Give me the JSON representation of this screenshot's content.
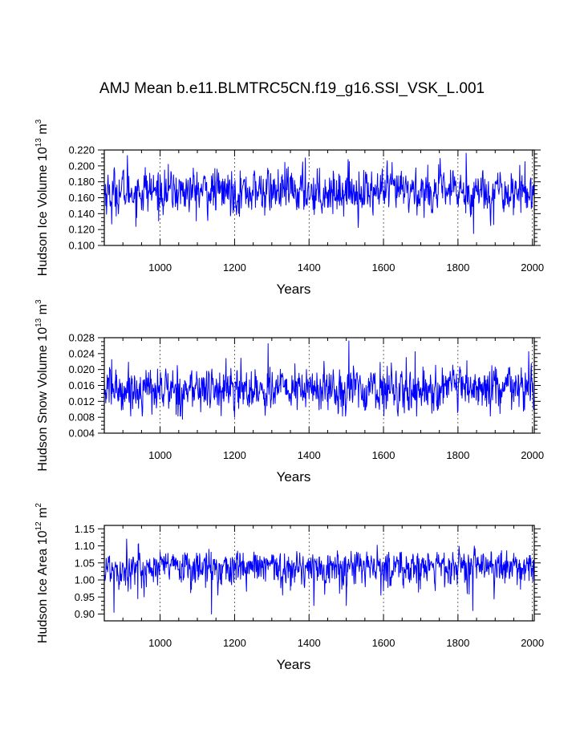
{
  "title": "AMJ Mean b.e11.BLMTRC5CN.f19_g16.SSI_VSK_L.001",
  "chart_data": [
    {
      "type": "line",
      "xlabel": "Years",
      "ylabel": "Hudson Ice Volume 10^13 m^3",
      "ylabel_parts": {
        "main": "Hudson Ice Volume 10",
        "exp": "13",
        "unit": " m",
        "unit_exp": "3"
      },
      "xlim": [
        850,
        2005
      ],
      "ylim": [
        0.1,
        0.22
      ],
      "xticks": [
        1000,
        1200,
        1400,
        1600,
        1800,
        2000
      ],
      "xtick_labels": [
        "1000",
        "1200",
        "1400",
        "1600",
        "1800",
        "2000"
      ],
      "yticks": [
        0.1,
        0.12,
        0.14,
        0.16,
        0.18,
        0.2,
        0.22
      ],
      "ytick_labels": [
        "0.100",
        "0.120",
        "0.140",
        "0.160",
        "0.180",
        "0.200",
        "0.220"
      ],
      "color": "#0000ff",
      "series_stats": {
        "mean": 0.168,
        "sd": 0.013,
        "min": 0.115,
        "max": 0.216
      },
      "spikes": [
        [
          912,
          0.213
        ],
        [
          935,
          0.124
        ],
        [
          1390,
          0.21
        ],
        [
          1505,
          0.208
        ],
        [
          1822,
          0.216
        ],
        [
          1842,
          0.115
        ],
        [
          870,
          0.127
        ],
        [
          960,
          0.198
        ]
      ]
    },
    {
      "type": "line",
      "xlabel": "Years",
      "ylabel": "Hudson Snow Volume 10^13 m^3",
      "ylabel_parts": {
        "main": "Hudson Snow Volume 10",
        "exp": "13",
        "unit": " m",
        "unit_exp": "3"
      },
      "xlim": [
        850,
        2005
      ],
      "ylim": [
        0.004,
        0.028
      ],
      "xticks": [
        1000,
        1200,
        1400,
        1600,
        1800,
        2000
      ],
      "xtick_labels": [
        "1000",
        "1200",
        "1400",
        "1600",
        "1800",
        "2000"
      ],
      "yticks": [
        0.004,
        0.008,
        0.012,
        0.016,
        0.02,
        0.024,
        0.028
      ],
      "ytick_labels": [
        "0.004",
        "0.008",
        "0.012",
        "0.016",
        "0.020",
        "0.024",
        "0.028"
      ],
      "color": "#0000ff",
      "series_stats": {
        "mean": 0.015,
        "sd": 0.0026,
        "min": 0.0075,
        "max": 0.0272
      },
      "spikes": [
        [
          1290,
          0.0265
        ],
        [
          1507,
          0.0272
        ],
        [
          1685,
          0.0245
        ],
        [
          1990,
          0.0245
        ],
        [
          1060,
          0.0075
        ],
        [
          1200,
          0.008
        ],
        [
          870,
          0.0225
        ]
      ]
    },
    {
      "type": "line",
      "xlabel": "Years",
      "ylabel": "Hudson Ice Area 10^12 m^2",
      "ylabel_parts": {
        "main": "Hudson Ice Area 10",
        "exp": "12",
        "unit": " m",
        "unit_exp": "2"
      },
      "xlim": [
        850,
        2005
      ],
      "ylim": [
        0.88,
        1.16
      ],
      "xticks": [
        1000,
        1200,
        1400,
        1600,
        1800,
        2000
      ],
      "xtick_labels": [
        "1000",
        "1200",
        "1400",
        "1600",
        "1800",
        "2000"
      ],
      "yticks": [
        0.9,
        0.95,
        1.0,
        1.05,
        1.1,
        1.15
      ],
      "ytick_labels": [
        "0.90",
        "0.95",
        "1.00",
        "1.05",
        "1.10",
        "1.15"
      ],
      "color": "#0000ff",
      "series_stats": {
        "mean": 1.04,
        "sd": 0.028,
        "min": 0.9,
        "max": 1.12
      },
      "spikes": [
        [
          876,
          0.905
        ],
        [
          910,
          1.12
        ],
        [
          1138,
          0.9
        ],
        [
          1500,
          0.925
        ],
        [
          1840,
          0.91
        ],
        [
          940,
          0.945
        ]
      ]
    }
  ]
}
